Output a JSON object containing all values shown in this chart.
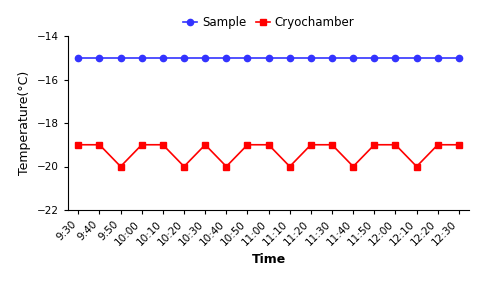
{
  "time_labels": [
    "9:30",
    "9:40",
    "9:50",
    "10:00",
    "10:10",
    "10:20",
    "10:30",
    "10:40",
    "10:50",
    "11:00",
    "11:10",
    "11:20",
    "11:30",
    "11:40",
    "11:50",
    "12:00",
    "12:10",
    "12:20",
    "12:30"
  ],
  "sample_values": [
    -15,
    -15,
    -15,
    -15,
    -15,
    -15,
    -15,
    -15,
    -15,
    -15,
    -15,
    -15,
    -15,
    -15,
    -15,
    -15,
    -15,
    -15,
    -15
  ],
  "cryo_pattern": [
    -19,
    -19,
    -20,
    -19,
    -19,
    -20,
    -19,
    -20,
    -19,
    -19,
    -20,
    -19,
    -19,
    -20,
    -19,
    -19,
    -20,
    -19,
    -19
  ],
  "sample_color": "#3333FF",
  "cryo_color": "#FF0000",
  "ylabel": "Temperature(°C)",
  "xlabel": "Time",
  "ylim": [
    -22,
    -14
  ],
  "yticks": [
    -22,
    -20,
    -18,
    -16,
    -14
  ],
  "legend_labels": [
    "Sample",
    "Cryochamber"
  ],
  "sample_marker": "o",
  "cryo_marker": "s",
  "background_color": "#ffffff",
  "axis_fontsize": 9,
  "tick_fontsize": 7.5,
  "legend_fontsize": 8.5,
  "linewidth": 1.2,
  "markersize": 4.5
}
